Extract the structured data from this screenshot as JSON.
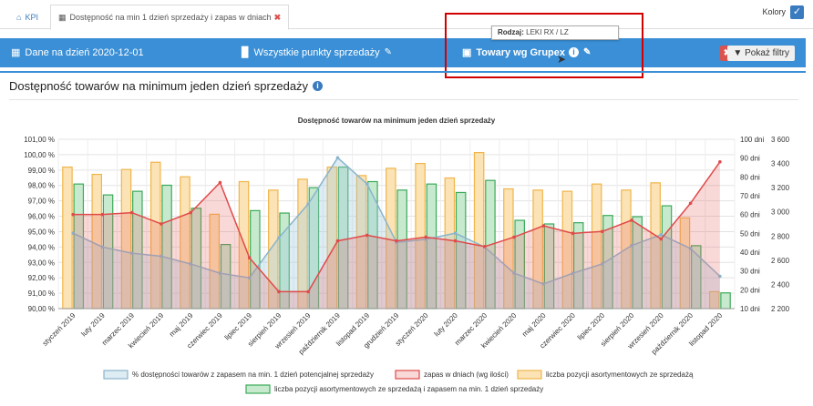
{
  "tabs": {
    "kpi_label": "KPI",
    "active_label": "Dostępność na min 1 dzień sprzedaży i zapas w dniach"
  },
  "kolory_label": "Kolory",
  "toolbar": {
    "date_label": "Dane na dzień 2020-12-01",
    "points_label": "Wszystkie punkty sprzedaży",
    "goods_label": "Towary wg Grupex",
    "filter_label": "Pokaż filtry"
  },
  "tooltip": {
    "key": "Rodzaj:",
    "value": "LEKI RX / LZ"
  },
  "section_title": "Dostępność towarów na minimum jeden dzień sprzedaży",
  "colors": {
    "accent": "#3a8fd6",
    "orange_bar": "#f0b54a",
    "green_bar": "#3aaa58",
    "red_line": "#e04a4a",
    "blue_line": "#8ab4cc"
  },
  "chart_data": {
    "type": "bar",
    "title": "Dostępność towarów na minimum jeden dzień sprzedaży",
    "categories": [
      "styczeń 2019",
      "luty 2019",
      "marzec 2019",
      "kwiecień 2019",
      "maj 2019",
      "czerwiec 2019",
      "lipiec 2019",
      "sierpień 2019",
      "wrzesień 2019",
      "październik 2019",
      "listopad 2019",
      "grudzień 2019",
      "styczeń 2020",
      "luty 2020",
      "marzec 2020",
      "kwiecień 2020",
      "maj 2020",
      "czerwiec 2020",
      "lipiec 2020",
      "sierpień 2020",
      "wrzesień 2020",
      "październik 2020",
      "listopad 2020"
    ],
    "left_axis": {
      "min": 90,
      "max": 101,
      "ticks": [
        "90,00 %",
        "91,00 %",
        "92,00 %",
        "93,00 %",
        "94,00 %",
        "95,00 %",
        "96,00 %",
        "97,00 %",
        "98,00 %",
        "99,00 %",
        "100,00 %",
        "101,00 %"
      ]
    },
    "mid_axis": {
      "min": 10,
      "max": 100,
      "ticks": [
        "10 dni",
        "20 dni",
        "30 dni",
        "40 dni",
        "50 dni",
        "60 dni",
        "70 dni",
        "80 dni",
        "90 dni",
        "100 dni"
      ]
    },
    "right_axis": {
      "min": 2200,
      "max": 3600,
      "ticks": [
        "2 200",
        "2 400",
        "2 600",
        "2 800",
        "3 000",
        "3 200",
        "3 400",
        "3 600"
      ]
    },
    "series": [
      {
        "name": "% dostępności towarów z zapasem na min. 1 dzień potencjalnej sprzedaży",
        "type": "area",
        "axis": "left",
        "values": [
          94.9,
          94.0,
          93.6,
          93.4,
          92.9,
          92.3,
          92.0,
          94.6,
          96.8,
          99.8,
          98.1,
          94.3,
          94.5,
          94.9,
          94.0,
          92.3,
          91.6,
          92.3,
          92.9,
          94.1,
          94.8,
          93.9,
          92.1
        ]
      },
      {
        "name": "zapas w dniach (wg ilości)",
        "type": "area",
        "axis": "mid",
        "values": [
          60,
          60,
          61,
          55,
          61,
          77,
          37,
          19,
          19,
          46,
          49,
          46,
          48,
          46,
          43,
          48,
          54,
          50,
          51,
          57,
          47,
          66,
          88
        ]
      },
      {
        "name": "liczba pozycji asortymentowych ze sprzedażą",
        "type": "bar",
        "axis": "right",
        "values": [
          3370,
          3310,
          3350,
          3410,
          3290,
          2980,
          3250,
          3180,
          3270,
          3370,
          3300,
          3360,
          3400,
          3280,
          3490,
          3190,
          3180,
          3170,
          3230,
          3180,
          3240,
          2950,
          2340
        ]
      },
      {
        "name": "liczba pozycji asortymentowych ze sprzedażą i zapasem na min. 1 dzień sprzedaży",
        "type": "bar",
        "axis": "right",
        "values": [
          3230,
          3140,
          3170,
          3220,
          3030,
          2730,
          3010,
          2990,
          3200,
          3370,
          3250,
          3180,
          3230,
          3160,
          3260,
          2930,
          2900,
          2910,
          2970,
          2960,
          3050,
          2720,
          2330
        ]
      }
    ]
  }
}
